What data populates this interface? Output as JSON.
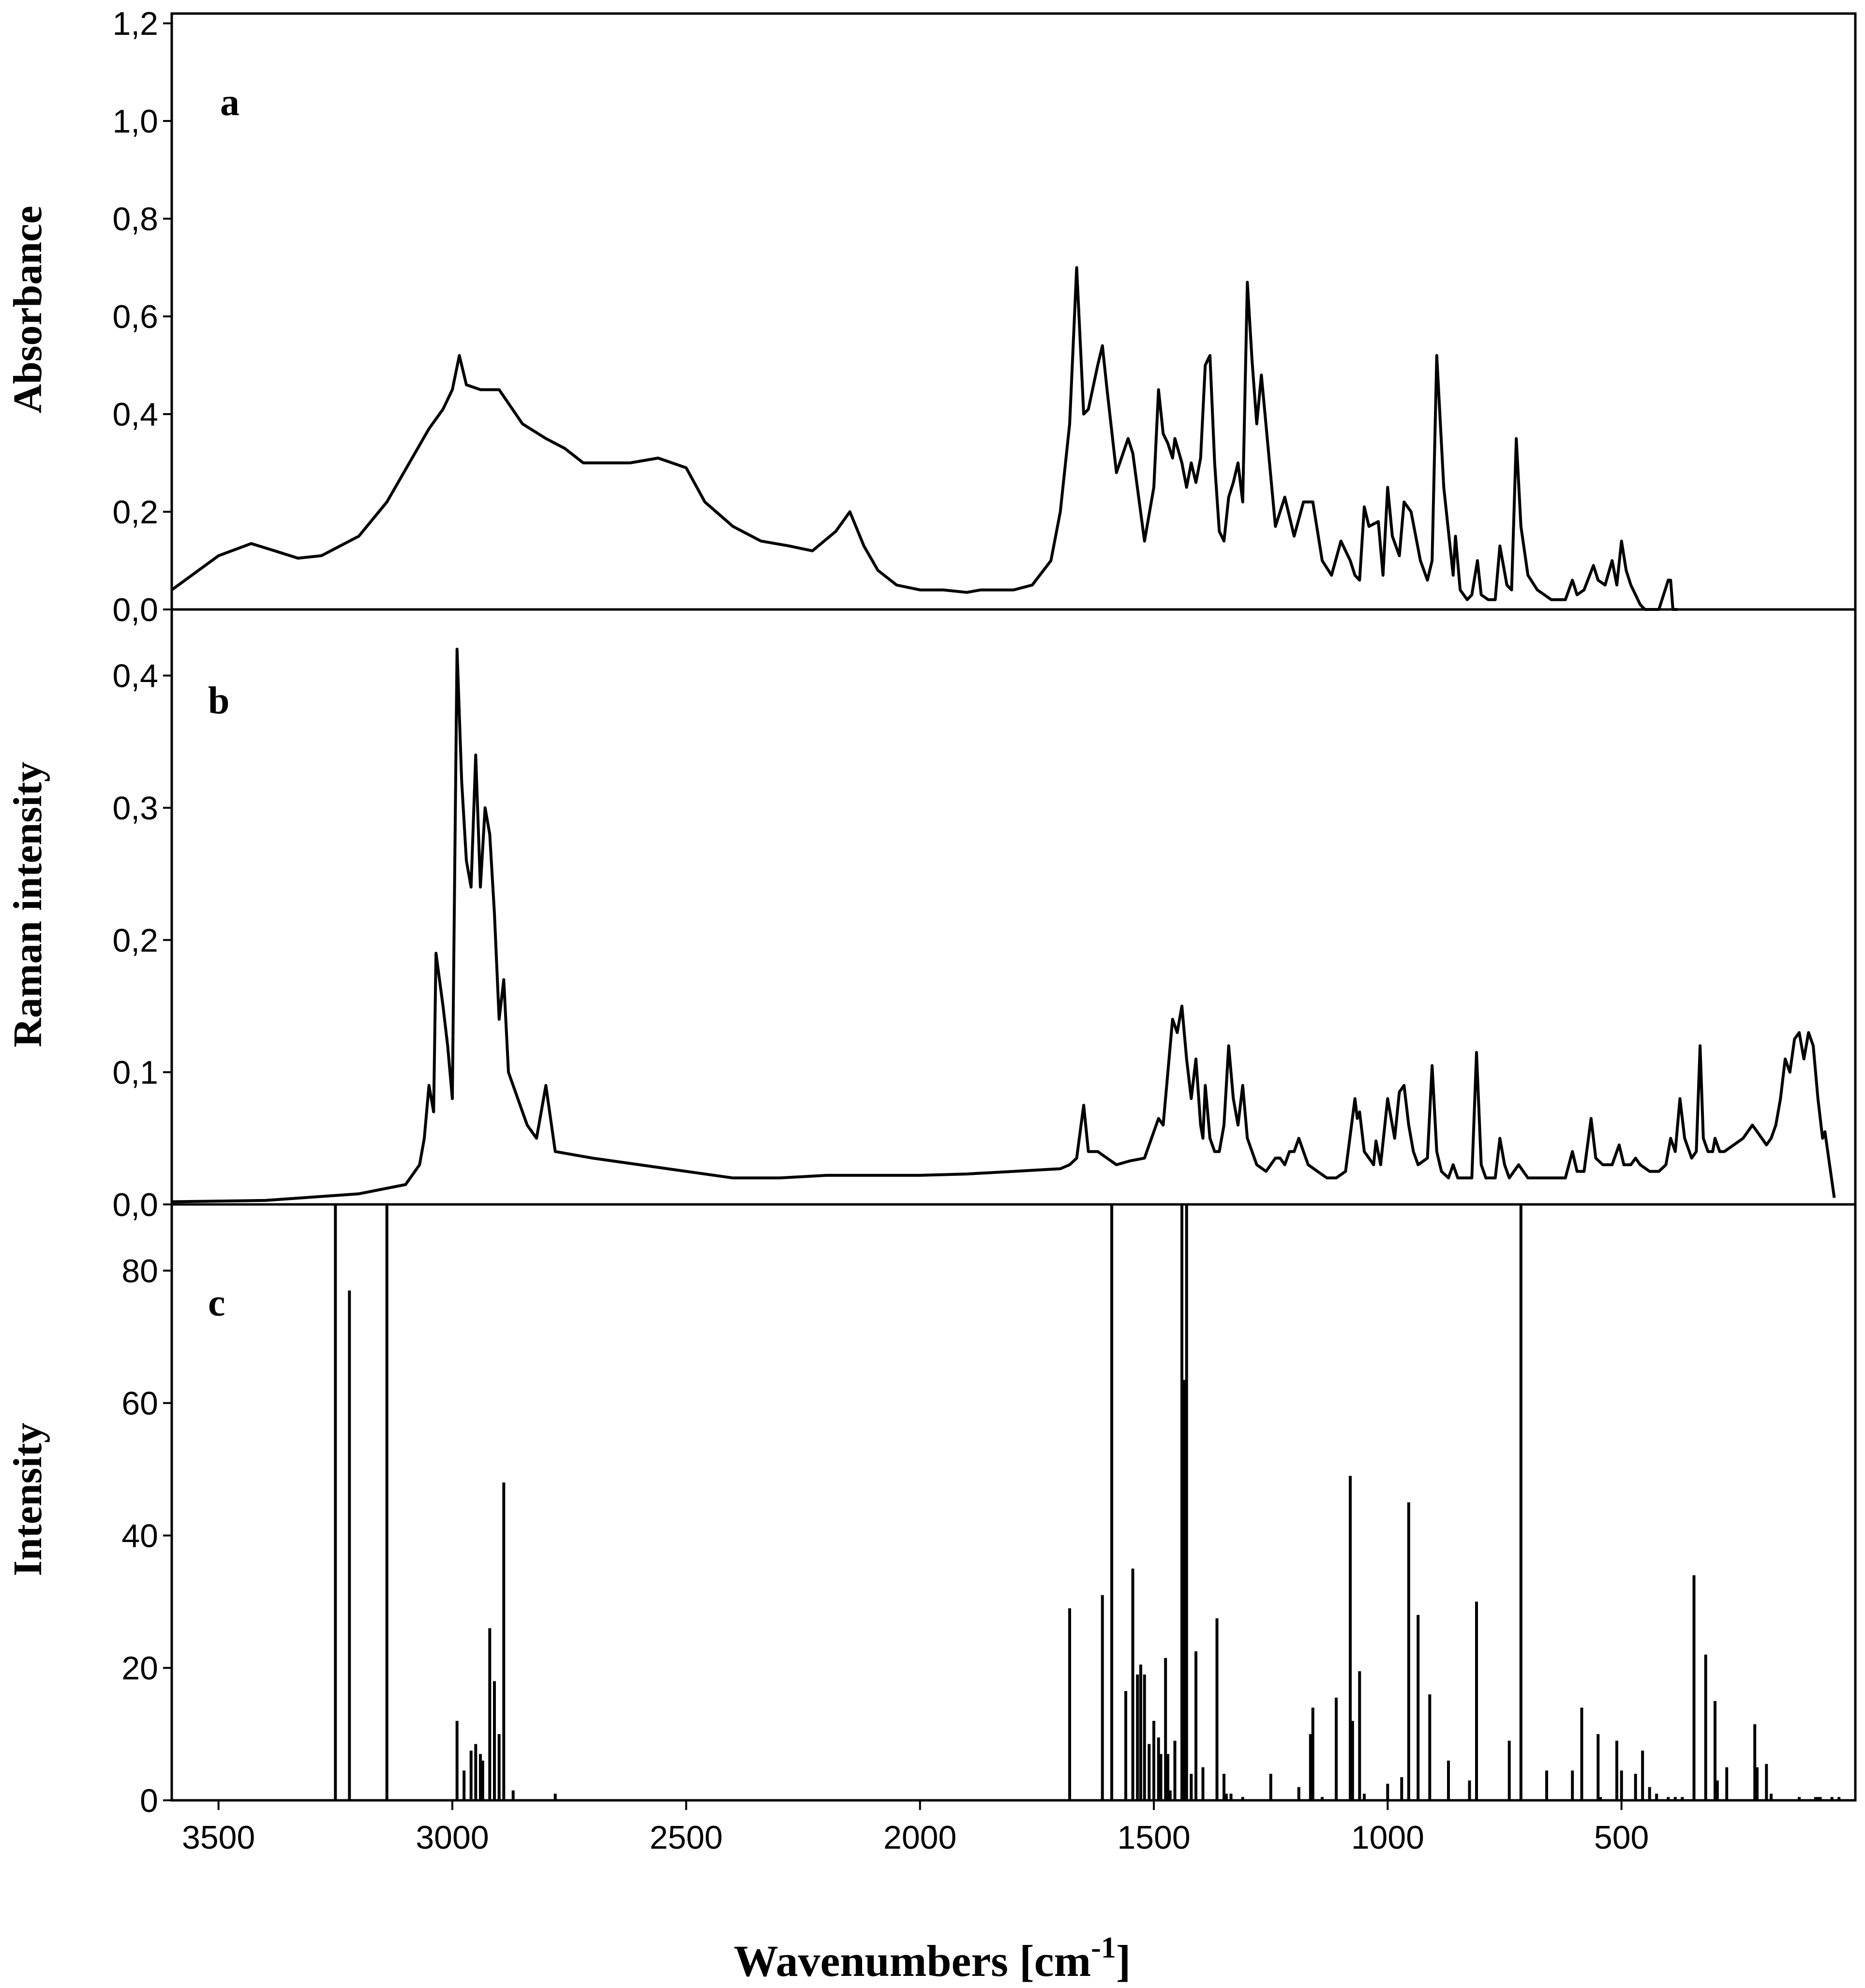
{
  "figure": {
    "x_label_main": "Wavenumbers [cm",
    "x_label_sup": "-1",
    "x_label_end": "]",
    "x_ticks": [
      "3500",
      "3000",
      "2500",
      "2000",
      "1500",
      "1000",
      "500"
    ],
    "x_tick_values": [
      3500,
      3000,
      2500,
      2000,
      1500,
      1000,
      500
    ],
    "x_range": [
      3600,
      0
    ]
  },
  "chart_data": [
    {
      "type": "line",
      "panel": "a",
      "ylabel": "Absorbance",
      "xlabel": "Wavenumbers [cm-1]",
      "ylim": [
        0,
        1.22
      ],
      "y_ticks": [
        "0,0",
        "0,2",
        "0,4",
        "0,6",
        "0,8",
        "1,0",
        "1,2"
      ],
      "y_tick_values": [
        0,
        0.2,
        0.4,
        0.6,
        0.8,
        1.0,
        1.2
      ],
      "x": [
        3600,
        3500,
        3430,
        3380,
        3330,
        3280,
        3200,
        3140,
        3080,
        3050,
        3020,
        3000,
        2985,
        2970,
        2940,
        2900,
        2850,
        2800,
        2760,
        2720,
        2680,
        2620,
        2560,
        2500,
        2460,
        2400,
        2340,
        2280,
        2230,
        2180,
        2150,
        2120,
        2090,
        2050,
        2000,
        1950,
        1900,
        1870,
        1830,
        1800,
        1760,
        1720,
        1700,
        1680,
        1665,
        1655,
        1650,
        1640,
        1620,
        1610,
        1600,
        1580,
        1555,
        1545,
        1520,
        1500,
        1490,
        1480,
        1470,
        1460,
        1455,
        1440,
        1430,
        1420,
        1410,
        1400,
        1390,
        1380,
        1370,
        1360,
        1350,
        1340,
        1330,
        1320,
        1310,
        1300,
        1290,
        1280,
        1270,
        1240,
        1220,
        1200,
        1180,
        1160,
        1140,
        1120,
        1100,
        1080,
        1070,
        1060,
        1050,
        1040,
        1020,
        1010,
        1000,
        990,
        975,
        965,
        950,
        930,
        915,
        905,
        895,
        880,
        860,
        855,
        845,
        830,
        820,
        808,
        800,
        785,
        770,
        760,
        745,
        735,
        725,
        715,
        700,
        680,
        650,
        620,
        605,
        595,
        580,
        560,
        550,
        535,
        520,
        510,
        500,
        490,
        480,
        470,
        460,
        450,
        440,
        420,
        400,
        395,
        390,
        385,
        380
      ],
      "y": [
        0.04,
        0.11,
        0.135,
        0.12,
        0.105,
        0.11,
        0.15,
        0.22,
        0.32,
        0.37,
        0.41,
        0.45,
        0.52,
        0.46,
        0.45,
        0.45,
        0.38,
        0.35,
        0.33,
        0.3,
        0.3,
        0.3,
        0.31,
        0.29,
        0.22,
        0.17,
        0.14,
        0.13,
        0.12,
        0.16,
        0.2,
        0.13,
        0.08,
        0.05,
        0.04,
        0.04,
        0.035,
        0.04,
        0.04,
        0.04,
        0.05,
        0.1,
        0.2,
        0.38,
        0.7,
        0.5,
        0.4,
        0.41,
        0.5,
        0.54,
        0.45,
        0.28,
        0.35,
        0.32,
        0.14,
        0.25,
        0.45,
        0.36,
        0.34,
        0.31,
        0.35,
        0.3,
        0.25,
        0.3,
        0.26,
        0.31,
        0.5,
        0.52,
        0.3,
        0.16,
        0.14,
        0.23,
        0.26,
        0.3,
        0.22,
        0.67,
        0.51,
        0.38,
        0.48,
        0.17,
        0.23,
        0.15,
        0.22,
        0.22,
        0.1,
        0.07,
        0.14,
        0.1,
        0.07,
        0.06,
        0.21,
        0.17,
        0.18,
        0.07,
        0.25,
        0.15,
        0.11,
        0.22,
        0.2,
        0.1,
        0.06,
        0.1,
        0.52,
        0.25,
        0.07,
        0.15,
        0.04,
        0.02,
        0.03,
        0.1,
        0.03,
        0.02,
        0.02,
        0.13,
        0.05,
        0.04,
        0.35,
        0.17,
        0.07,
        0.04,
        0.02,
        0.02,
        0.06,
        0.03,
        0.04,
        0.09,
        0.06,
        0.05,
        0.1,
        0.05,
        0.14,
        0.08,
        0.05,
        0.03,
        0.01,
        0.0,
        0.0,
        0.0,
        0.06,
        0.06,
        0.0,
        0.0,
        0.0
      ],
      "grid": false
    },
    {
      "type": "line",
      "panel": "b",
      "ylabel": "Raman intensity",
      "xlabel": "Wavenumbers [cm-1]",
      "ylim": [
        0,
        0.45
      ],
      "y_ticks": [
        "0,0",
        "0,1",
        "0,2",
        "0,3",
        "0,4"
      ],
      "y_tick_values": [
        0,
        0.1,
        0.2,
        0.3,
        0.4
      ],
      "x": [
        3600,
        3400,
        3200,
        3100,
        3070,
        3060,
        3050,
        3040,
        3035,
        3020,
        3010,
        3000,
        2990,
        2980,
        2970,
        2960,
        2950,
        2940,
        2930,
        2920,
        2910,
        2900,
        2890,
        2880,
        2860,
        2840,
        2820,
        2810,
        2800,
        2780,
        2700,
        2600,
        2500,
        2400,
        2300,
        2200,
        2100,
        2000,
        1900,
        1800,
        1700,
        1680,
        1665,
        1650,
        1640,
        1620,
        1600,
        1580,
        1550,
        1520,
        1505,
        1490,
        1480,
        1470,
        1460,
        1450,
        1440,
        1430,
        1420,
        1410,
        1400,
        1395,
        1390,
        1380,
        1370,
        1360,
        1350,
        1340,
        1330,
        1320,
        1310,
        1300,
        1290,
        1280,
        1260,
        1240,
        1230,
        1220,
        1210,
        1200,
        1190,
        1180,
        1170,
        1150,
        1130,
        1120,
        1110,
        1090,
        1070,
        1065,
        1060,
        1050,
        1040,
        1030,
        1025,
        1015,
        1000,
        990,
        985,
        975,
        965,
        955,
        945,
        935,
        915,
        905,
        895,
        885,
        870,
        860,
        850,
        840,
        820,
        810,
        800,
        790,
        780,
        770,
        760,
        750,
        740,
        720,
        700,
        680,
        640,
        620,
        605,
        595,
        580,
        565,
        555,
        540,
        520,
        505,
        495,
        480,
        470,
        460,
        440,
        420,
        405,
        395,
        385,
        375,
        365,
        350,
        340,
        332,
        325,
        315,
        305,
        300,
        290,
        280,
        260,
        240,
        220,
        200,
        190,
        180,
        170,
        160,
        150,
        140,
        130,
        120,
        110,
        100,
        90,
        80,
        70,
        65,
        55,
        45
      ],
      "y": [
        0.002,
        0.003,
        0.008,
        0.015,
        0.03,
        0.05,
        0.09,
        0.07,
        0.19,
        0.15,
        0.12,
        0.08,
        0.42,
        0.32,
        0.26,
        0.24,
        0.34,
        0.24,
        0.3,
        0.28,
        0.22,
        0.14,
        0.17,
        0.1,
        0.08,
        0.06,
        0.05,
        0.07,
        0.09,
        0.04,
        0.035,
        0.03,
        0.025,
        0.02,
        0.02,
        0.022,
        0.022,
        0.022,
        0.023,
        0.025,
        0.027,
        0.03,
        0.035,
        0.075,
        0.04,
        0.04,
        0.035,
        0.03,
        0.033,
        0.035,
        0.05,
        0.065,
        0.06,
        0.1,
        0.14,
        0.13,
        0.15,
        0.11,
        0.08,
        0.11,
        0.06,
        0.05,
        0.09,
        0.05,
        0.04,
        0.04,
        0.06,
        0.12,
        0.08,
        0.06,
        0.09,
        0.05,
        0.04,
        0.03,
        0.025,
        0.035,
        0.035,
        0.03,
        0.04,
        0.04,
        0.05,
        0.04,
        0.03,
        0.025,
        0.02,
        0.02,
        0.02,
        0.025,
        0.08,
        0.065,
        0.07,
        0.04,
        0.035,
        0.03,
        0.048,
        0.03,
        0.08,
        0.06,
        0.05,
        0.085,
        0.09,
        0.06,
        0.04,
        0.03,
        0.035,
        0.105,
        0.04,
        0.025,
        0.02,
        0.03,
        0.02,
        0.02,
        0.02,
        0.115,
        0.03,
        0.02,
        0.02,
        0.02,
        0.05,
        0.03,
        0.02,
        0.03,
        0.02,
        0.02,
        0.02,
        0.02,
        0.04,
        0.025,
        0.025,
        0.065,
        0.035,
        0.03,
        0.03,
        0.045,
        0.03,
        0.03,
        0.035,
        0.03,
        0.025,
        0.025,
        0.03,
        0.05,
        0.04,
        0.08,
        0.05,
        0.035,
        0.04,
        0.12,
        0.05,
        0.04,
        0.04,
        0.05,
        0.04,
        0.04,
        0.045,
        0.05,
        0.06,
        0.05,
        0.045,
        0.05,
        0.06,
        0.08,
        0.11,
        0.1,
        0.125,
        0.13,
        0.11,
        0.13,
        0.12,
        0.08,
        0.05,
        0.055,
        0.03,
        0.005
      ],
      "grid": false
    },
    {
      "type": "bar",
      "panel": "c",
      "ylabel": "Intensity",
      "xlabel": "Wavenumbers [cm-1]",
      "ylim": [
        0,
        90
      ],
      "y_ticks": [
        "0",
        "20",
        "40",
        "60",
        "80"
      ],
      "y_tick_values": [
        0,
        20,
        40,
        60,
        80
      ],
      "x": [
        3250,
        3220,
        3140,
        2990,
        2975,
        2960,
        2950,
        2940,
        2935,
        2920,
        2910,
        2900,
        2890,
        2870,
        2780,
        1680,
        1610,
        1590,
        1560,
        1545,
        1535,
        1528,
        1520,
        1510,
        1500,
        1490,
        1485,
        1475,
        1470,
        1465,
        1455,
        1440,
        1435,
        1430,
        1420,
        1410,
        1395,
        1365,
        1350,
        1345,
        1335,
        1310,
        1250,
        1190,
        1165,
        1160,
        1140,
        1110,
        1080,
        1075,
        1060,
        1050,
        1000,
        970,
        955,
        935,
        910,
        870,
        825,
        810,
        740,
        715,
        660,
        605,
        585,
        550,
        545,
        510,
        500,
        470,
        455,
        440,
        425,
        400,
        385,
        370,
        345,
        320,
        300,
        295,
        275,
        215,
        210,
        190,
        180,
        120,
        85,
        80,
        75,
        50,
        35
      ],
      "values": [
        90,
        77,
        90,
        12,
        4.5,
        7.5,
        8.5,
        7,
        6,
        26,
        18,
        10,
        48,
        1.5,
        1,
        29,
        31,
        90,
        16.5,
        35,
        19,
        20.5,
        19,
        8.5,
        12,
        9.5,
        7,
        21.5,
        7,
        1.5,
        9,
        90,
        63.5,
        90,
        4,
        22.5,
        5,
        27.5,
        4,
        1,
        1,
        0.5,
        4,
        2,
        10,
        14,
        0.5,
        15.5,
        49,
        12,
        19.5,
        1,
        2.5,
        3.5,
        45,
        28,
        16,
        6,
        3,
        30,
        9,
        90,
        4.5,
        4.5,
        14,
        10,
        0.5,
        9,
        4.5,
        4,
        7.5,
        2,
        1,
        0.5,
        0.5,
        0.5,
        34,
        22,
        15,
        3,
        5,
        11.5,
        5,
        5.5,
        1,
        0.5,
        0.5,
        0.5,
        0.5,
        0.5,
        0.5
      ],
      "grid": false
    }
  ]
}
